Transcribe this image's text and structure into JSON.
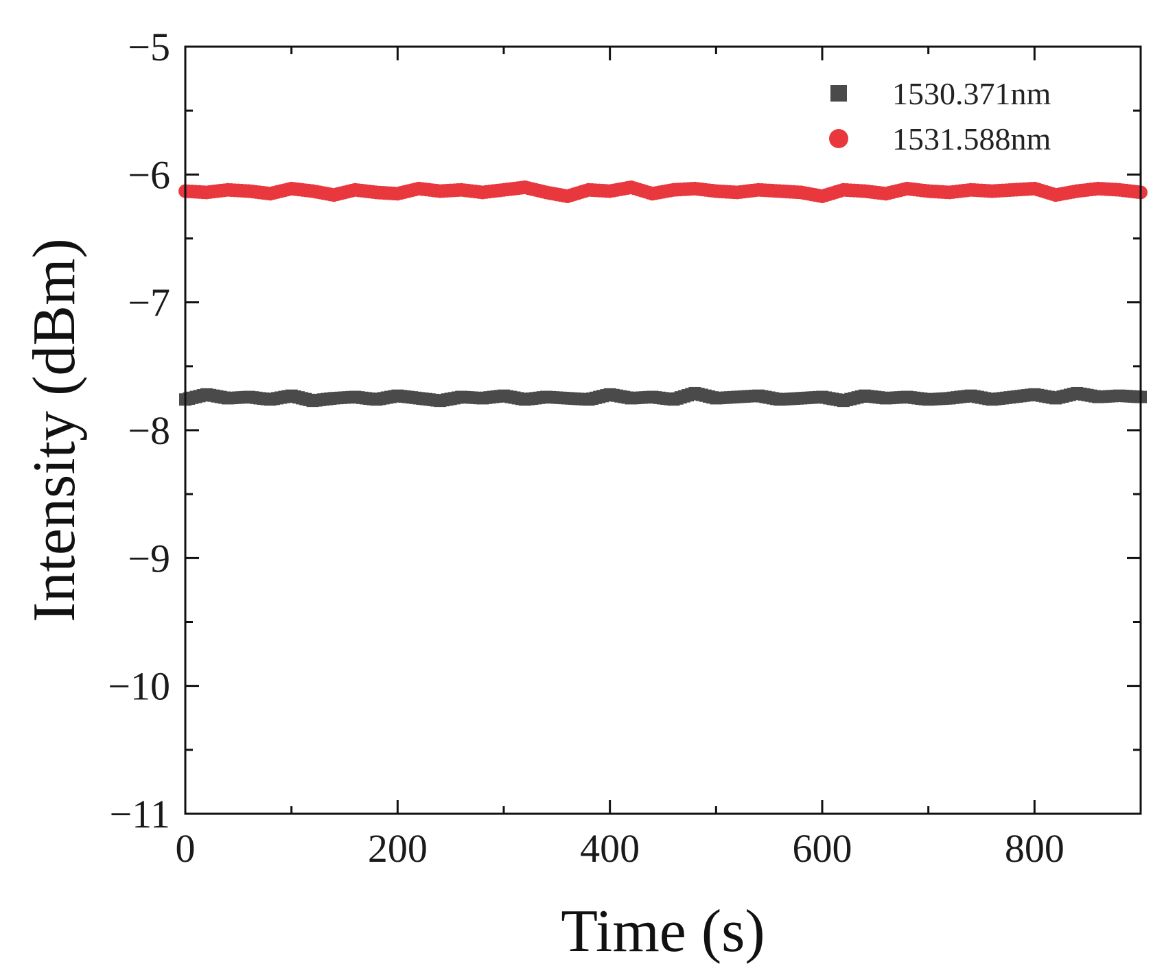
{
  "chart_data": {
    "type": "scatter",
    "title": "",
    "xlabel": "Time (s)",
    "ylabel": "Intensity (dBm)",
    "xlim": [
      0,
      900
    ],
    "ylim": [
      -11,
      -5
    ],
    "xticks": [
      0,
      200,
      400,
      600,
      800
    ],
    "xtick_labels": [
      "0",
      "200",
      "400",
      "600",
      "800"
    ],
    "yticks": [
      -5,
      -6,
      -7,
      -8,
      -9,
      -10,
      -11
    ],
    "ytick_labels": [
      "−5",
      "−6",
      "−7",
      "−8",
      "−9",
      "−10",
      "−11"
    ],
    "grid": false,
    "legend_position": "top-right",
    "series": [
      {
        "name": "1530.371nm",
        "marker": "square",
        "color": "#4a4a4a",
        "x": [
          0,
          20,
          40,
          60,
          80,
          100,
          120,
          140,
          160,
          180,
          200,
          220,
          240,
          260,
          280,
          300,
          320,
          340,
          360,
          380,
          400,
          420,
          440,
          460,
          480,
          500,
          520,
          540,
          560,
          580,
          600,
          620,
          640,
          660,
          680,
          700,
          720,
          740,
          760,
          780,
          800,
          820,
          840,
          860,
          880,
          900
        ],
        "y": [
          -7.76,
          -7.72,
          -7.75,
          -7.74,
          -7.76,
          -7.73,
          -7.77,
          -7.75,
          -7.74,
          -7.76,
          -7.73,
          -7.75,
          -7.77,
          -7.74,
          -7.75,
          -7.73,
          -7.76,
          -7.74,
          -7.75,
          -7.76,
          -7.72,
          -7.75,
          -7.74,
          -7.76,
          -7.71,
          -7.75,
          -7.74,
          -7.73,
          -7.76,
          -7.75,
          -7.74,
          -7.77,
          -7.73,
          -7.75,
          -7.74,
          -7.76,
          -7.75,
          -7.73,
          -7.76,
          -7.74,
          -7.72,
          -7.75,
          -7.71,
          -7.74,
          -7.73,
          -7.74
        ]
      },
      {
        "name": "1531.588nm",
        "marker": "circle",
        "color": "#e8383d",
        "x": [
          0,
          20,
          40,
          60,
          80,
          100,
          120,
          140,
          160,
          180,
          200,
          220,
          240,
          260,
          280,
          300,
          320,
          340,
          360,
          380,
          400,
          420,
          440,
          460,
          480,
          500,
          520,
          540,
          560,
          580,
          600,
          620,
          640,
          660,
          680,
          700,
          720,
          740,
          760,
          780,
          800,
          820,
          840,
          860,
          880,
          900
        ],
        "y": [
          -6.13,
          -6.14,
          -6.12,
          -6.13,
          -6.15,
          -6.11,
          -6.13,
          -6.16,
          -6.12,
          -6.14,
          -6.15,
          -6.11,
          -6.13,
          -6.12,
          -6.14,
          -6.12,
          -6.1,
          -6.14,
          -6.17,
          -6.12,
          -6.13,
          -6.1,
          -6.15,
          -6.12,
          -6.11,
          -6.13,
          -6.14,
          -6.12,
          -6.13,
          -6.14,
          -6.17,
          -6.12,
          -6.13,
          -6.15,
          -6.11,
          -6.13,
          -6.14,
          -6.12,
          -6.13,
          -6.12,
          -6.11,
          -6.16,
          -6.13,
          -6.11,
          -6.12,
          -6.14
        ]
      }
    ]
  }
}
